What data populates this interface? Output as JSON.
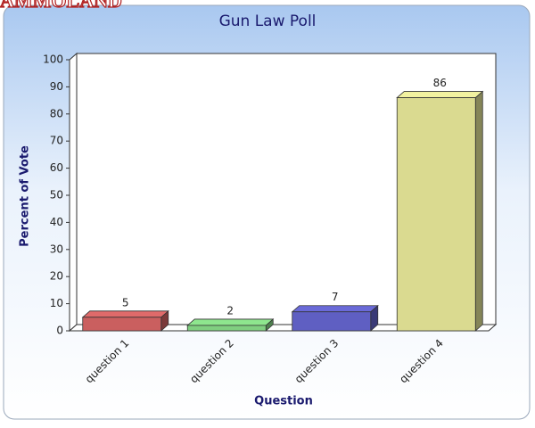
{
  "watermark": "AMMOLAND",
  "chart_data": {
    "type": "bar3d",
    "title": "Gun Law Poll",
    "x_label": "Question",
    "y_label": "Percent of Vote",
    "categories": [
      "question 1",
      "question 2",
      "question 3",
      "question 4"
    ],
    "values": [
      5,
      2,
      7,
      86
    ],
    "colors": [
      "#e06a6a",
      "#8ee68e",
      "#6a6ad8",
      "#f2f2a0"
    ],
    "ylim": [
      0,
      100
    ],
    "yticks": [
      0,
      10,
      20,
      30,
      40,
      50,
      60,
      70,
      80,
      90,
      100
    ],
    "grid": false
  }
}
